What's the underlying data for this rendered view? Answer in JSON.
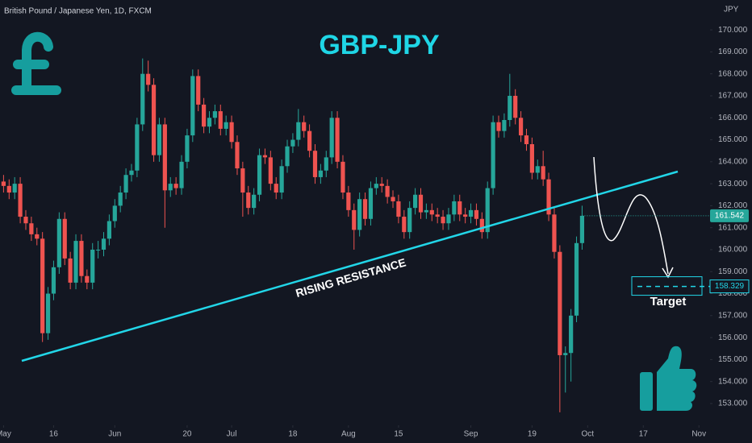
{
  "chart_data": {
    "type": "candlestick",
    "symbol": "British Pound / Japanese Yen, 1D, FXCM",
    "title": "GBP-JPY",
    "y_unit": "JPY",
    "annotation": "RISING RESISTANCE",
    "target_label": "Target",
    "target": 158.329,
    "up_color": "#26a69a",
    "down_color": "#ef5350",
    "ylim": [
      152.01,
      171.36
    ],
    "yticks": [
      {
        "value": 153,
        "label": "153.000"
      },
      {
        "value": 154,
        "label": "154.000"
      },
      {
        "value": 155,
        "label": "155.000"
      },
      {
        "value": 156,
        "label": "156.000"
      },
      {
        "value": 157,
        "label": "157.000"
      },
      {
        "value": 158,
        "label": "158.000"
      },
      {
        "value": 159,
        "label": "159.000"
      },
      {
        "value": 160,
        "label": "160.000"
      },
      {
        "value": 161,
        "label": "161.000"
      },
      {
        "value": 162,
        "label": "162.000"
      },
      {
        "value": 163,
        "label": "163.000"
      },
      {
        "value": 164,
        "label": "164.000"
      },
      {
        "value": 165,
        "label": "165.000"
      },
      {
        "value": 166,
        "label": "166.000"
      },
      {
        "value": 167,
        "label": "167.000"
      },
      {
        "value": 168,
        "label": "168.000"
      },
      {
        "value": 169,
        "label": "169.000"
      },
      {
        "value": 170,
        "label": "170.000"
      }
    ],
    "xlim": [
      0,
      127
    ],
    "xticks": [
      {
        "value": 0,
        "label": "May"
      },
      {
        "value": 9,
        "label": "16"
      },
      {
        "value": 20,
        "label": "Jun"
      },
      {
        "value": 33,
        "label": "20"
      },
      {
        "value": 41,
        "label": "Jul"
      },
      {
        "value": 52,
        "label": "18"
      },
      {
        "value": 62,
        "label": "Aug"
      },
      {
        "value": 71,
        "label": "15"
      },
      {
        "value": 84,
        "label": "Sep"
      },
      {
        "value": 95,
        "label": "19"
      },
      {
        "value": 105,
        "label": "Oct"
      },
      {
        "value": 115,
        "label": "17"
      },
      {
        "value": 125,
        "label": "Nov"
      }
    ],
    "candles": [
      [
        163.1,
        163.4,
        162.6,
        162.9
      ],
      [
        162.9,
        163.2,
        162.3,
        162.6
      ],
      [
        162.6,
        163.3,
        162.3,
        163.0
      ],
      [
        163.0,
        163.3,
        161.2,
        161.5
      ],
      [
        161.5,
        161.8,
        160.9,
        161.2
      ],
      [
        161.2,
        161.5,
        160.4,
        160.7
      ],
      [
        160.7,
        161.0,
        160.2,
        160.5
      ],
      [
        160.5,
        160.8,
        155.8,
        156.2
      ],
      [
        156.2,
        158.3,
        155.9,
        158.0
      ],
      [
        158.0,
        159.5,
        157.7,
        159.2
      ],
      [
        159.2,
        161.7,
        158.9,
        161.4
      ],
      [
        161.4,
        161.7,
        159.3,
        159.6
      ],
      [
        159.6,
        159.9,
        158.2,
        158.5
      ],
      [
        158.5,
        160.7,
        158.2,
        160.4
      ],
      [
        160.4,
        160.7,
        158.5,
        158.8
      ],
      [
        158.8,
        159.1,
        158.2,
        158.5
      ],
      [
        158.5,
        160.3,
        158.2,
        160.0
      ],
      [
        160.0,
        160.4,
        159.6,
        160.0
      ],
      [
        160.0,
        160.8,
        159.7,
        160.5
      ],
      [
        160.5,
        161.6,
        160.2,
        161.3
      ],
      [
        161.3,
        162.3,
        161.0,
        162.0
      ],
      [
        162.0,
        162.9,
        161.7,
        162.6
      ],
      [
        162.6,
        163.7,
        162.3,
        163.4
      ],
      [
        163.4,
        163.9,
        163.1,
        163.6
      ],
      [
        163.6,
        166.0,
        163.3,
        165.7
      ],
      [
        165.7,
        168.7,
        165.4,
        168.0
      ],
      [
        168.0,
        168.6,
        167.2,
        167.5
      ],
      [
        167.5,
        167.8,
        164.0,
        164.3
      ],
      [
        164.3,
        166.0,
        164.0,
        165.7
      ],
      [
        165.7,
        166.0,
        161.0,
        162.7
      ],
      [
        162.7,
        163.3,
        162.4,
        163.0
      ],
      [
        163.0,
        163.3,
        162.5,
        162.8
      ],
      [
        162.8,
        164.3,
        162.5,
        164.0
      ],
      [
        164.0,
        165.5,
        163.7,
        165.2
      ],
      [
        165.2,
        168.2,
        164.9,
        167.9
      ],
      [
        167.9,
        168.2,
        166.3,
        166.6
      ],
      [
        166.6,
        166.9,
        165.3,
        165.6
      ],
      [
        165.6,
        166.3,
        165.3,
        166.0
      ],
      [
        166.0,
        166.6,
        165.7,
        166.3
      ],
      [
        166.3,
        166.6,
        165.2,
        165.5
      ],
      [
        165.5,
        166.1,
        165.2,
        165.8
      ],
      [
        165.8,
        166.1,
        164.6,
        164.9
      ],
      [
        164.9,
        165.2,
        163.4,
        163.7
      ],
      [
        163.7,
        164.0,
        161.5,
        162.6
      ],
      [
        162.6,
        162.9,
        161.6,
        161.9
      ],
      [
        161.9,
        162.8,
        161.6,
        162.5
      ],
      [
        162.5,
        164.6,
        162.2,
        164.3
      ],
      [
        164.3,
        164.6,
        163.9,
        164.2
      ],
      [
        164.2,
        164.5,
        162.7,
        163.0
      ],
      [
        163.0,
        163.3,
        162.3,
        162.6
      ],
      [
        162.6,
        164.1,
        162.3,
        163.8
      ],
      [
        163.8,
        165.0,
        163.5,
        164.7
      ],
      [
        164.7,
        165.3,
        164.4,
        165.0
      ],
      [
        165.0,
        166.4,
        164.7,
        165.8
      ],
      [
        165.8,
        166.1,
        165.1,
        165.4
      ],
      [
        165.4,
        165.7,
        164.2,
        164.5
      ],
      [
        164.5,
        164.8,
        163.0,
        163.3
      ],
      [
        163.3,
        163.9,
        163.0,
        163.6
      ],
      [
        163.6,
        164.5,
        163.3,
        164.2
      ],
      [
        164.2,
        166.3,
        163.9,
        166.0
      ],
      [
        166.0,
        166.3,
        163.7,
        164.0
      ],
      [
        164.0,
        164.3,
        162.3,
        162.6
      ],
      [
        162.6,
        162.9,
        161.5,
        161.8
      ],
      [
        161.8,
        162.1,
        160.0,
        160.9
      ],
      [
        160.9,
        162.6,
        160.6,
        162.3
      ],
      [
        162.3,
        162.6,
        161.1,
        161.4
      ],
      [
        161.4,
        163.1,
        161.1,
        162.8
      ],
      [
        162.8,
        163.3,
        162.5,
        163.0
      ],
      [
        163.0,
        163.3,
        162.6,
        162.9
      ],
      [
        162.9,
        163.2,
        162.1,
        162.4
      ],
      [
        162.4,
        162.7,
        161.9,
        162.2
      ],
      [
        162.2,
        162.5,
        161.2,
        161.5
      ],
      [
        161.5,
        161.8,
        160.5,
        160.8
      ],
      [
        160.8,
        162.2,
        160.5,
        161.9
      ],
      [
        161.9,
        162.8,
        161.6,
        162.5
      ],
      [
        162.5,
        162.8,
        161.4,
        161.7
      ],
      [
        161.7,
        162.1,
        161.4,
        161.8
      ],
      [
        161.8,
        162.1,
        161.3,
        161.6
      ],
      [
        161.6,
        161.9,
        161.2,
        161.5
      ],
      [
        161.5,
        161.8,
        160.9,
        161.2
      ],
      [
        161.2,
        161.9,
        160.9,
        161.6
      ],
      [
        161.6,
        162.5,
        161.3,
        162.2
      ],
      [
        162.2,
        162.5,
        161.3,
        161.6
      ],
      [
        161.6,
        161.9,
        161.2,
        161.5
      ],
      [
        161.5,
        162.1,
        161.2,
        161.8
      ],
      [
        161.8,
        162.1,
        161.1,
        161.4
      ],
      [
        161.4,
        161.7,
        160.5,
        160.8
      ],
      [
        160.8,
        163.1,
        160.5,
        162.8
      ],
      [
        162.8,
        166.1,
        162.5,
        165.8
      ],
      [
        165.8,
        166.1,
        165.1,
        165.4
      ],
      [
        165.4,
        166.2,
        165.1,
        165.9
      ],
      [
        165.9,
        168.0,
        165.6,
        167.0
      ],
      [
        167.0,
        167.3,
        165.7,
        166.0
      ],
      [
        166.0,
        166.3,
        164.9,
        165.2
      ],
      [
        165.2,
        165.5,
        164.5,
        164.8
      ],
      [
        164.8,
        165.1,
        163.2,
        163.5
      ],
      [
        163.5,
        164.1,
        163.2,
        163.8
      ],
      [
        163.8,
        164.5,
        162.9,
        163.2
      ],
      [
        163.2,
        163.5,
        161.3,
        161.6
      ],
      [
        161.6,
        161.9,
        159.6,
        159.9
      ],
      [
        159.9,
        160.2,
        152.6,
        155.2
      ],
      [
        155.2,
        155.6,
        153.5,
        155.3
      ],
      [
        155.3,
        157.3,
        154.0,
        157.0
      ],
      [
        157.0,
        160.6,
        156.7,
        160.3
      ],
      [
        160.3,
        162.0,
        160.0,
        161.542
      ]
    ]
  }
}
